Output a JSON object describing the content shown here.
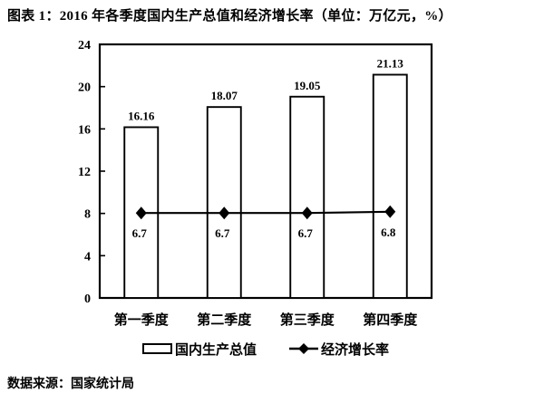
{
  "title": "图表 1：2016 年各季度国内生产总值和经济增长率（单位：万亿元，%）",
  "source_note": "数据来源：国家统计局",
  "chart_data": {
    "type": "bar",
    "title": "图表 1：2016 年各季度国内生产总值和经济增长率（单位：万亿元，%）",
    "categories": [
      "第一季度",
      "第二季度",
      "第三季度",
      "第四季度"
    ],
    "series": [
      {
        "name": "国内生产总值",
        "type": "bar",
        "unit": "万亿元",
        "values": [
          16.16,
          18.07,
          19.05,
          21.13
        ],
        "value_labels": [
          "16.16",
          "18.07",
          "19.05",
          "21.13"
        ]
      },
      {
        "name": "经济增长率",
        "type": "line",
        "unit": "%",
        "marker": "diamond",
        "values": [
          6.7,
          6.7,
          6.7,
          6.8
        ],
        "value_labels": [
          "6.7",
          "6.7",
          "6.7",
          "6.8"
        ]
      }
    ],
    "ylim": [
      0,
      24
    ],
    "yticks": [
      0,
      4,
      8,
      12,
      16,
      20,
      24
    ],
    "secondary_ylim": [
      0,
      20
    ],
    "grid": false,
    "legend_position": "bottom",
    "colors": {
      "bar_fill": "#ffffff",
      "stroke": "#000000",
      "text": "#000000",
      "background": "#ffffff"
    }
  },
  "legend": {
    "items": [
      {
        "label": "国内生产总值",
        "swatch": "bar-outline"
      },
      {
        "label": "经济增长率",
        "swatch": "line-diamond"
      }
    ]
  }
}
